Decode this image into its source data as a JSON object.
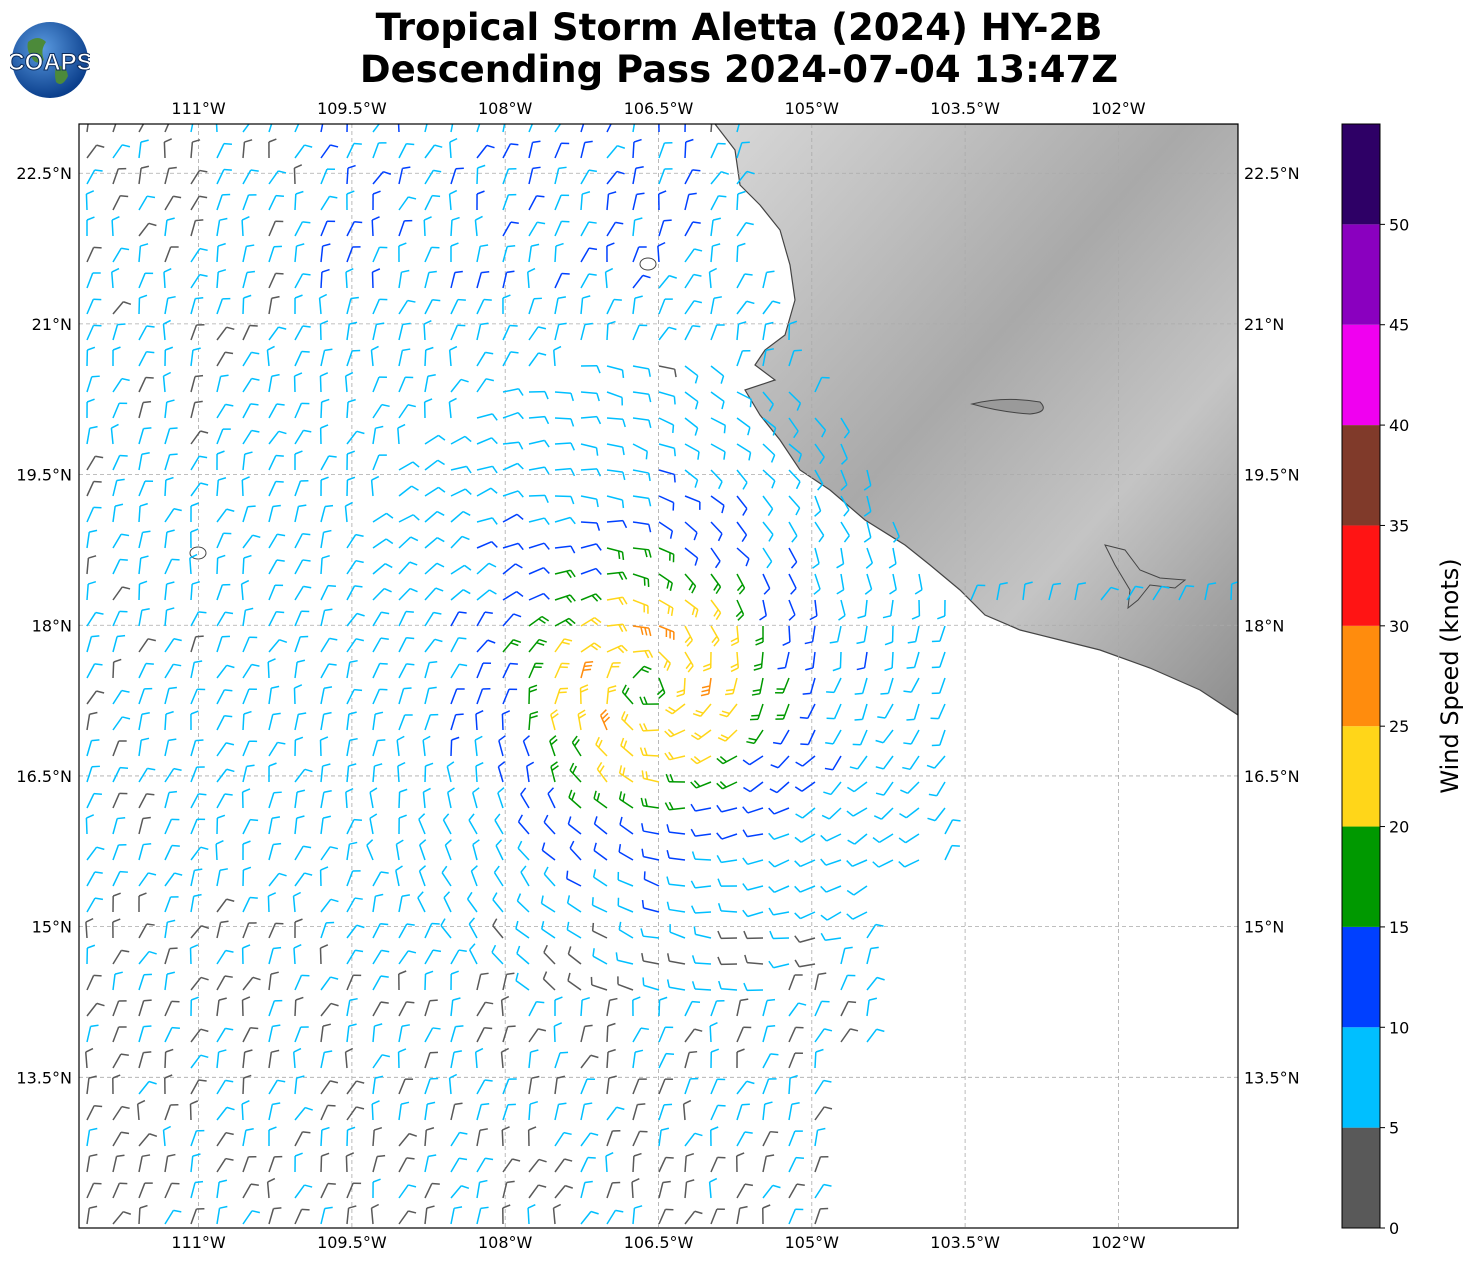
{
  "title_line1": "Tropical Storm Aletta (2024) HY-2B",
  "title_line2": "Descending Pass 2024-07-04 13:47Z",
  "logo_text": "COAPS",
  "lon_ticks": [
    "111°W",
    "109.5°W",
    "108°W",
    "106.5°W",
    "105°W",
    "103.5°W",
    "102°W"
  ],
  "lat_ticks": [
    "22.5°N",
    "21°N",
    "19.5°N",
    "18°N",
    "16.5°N",
    "15°N",
    "13.5°N"
  ],
  "colorbar": {
    "label": "Wind Speed (knots)",
    "ticks": [
      "0",
      "5",
      "10",
      "15",
      "20",
      "25",
      "30",
      "35",
      "40",
      "45",
      "50"
    ],
    "bins": [
      {
        "min": 0,
        "max": 5,
        "color": "#595959"
      },
      {
        "min": 5,
        "max": 10,
        "color": "#00bfff"
      },
      {
        "min": 10,
        "max": 15,
        "color": "#0040ff"
      },
      {
        "min": 15,
        "max": 20,
        "color": "#009900"
      },
      {
        "min": 20,
        "max": 25,
        "color": "#ffd619"
      },
      {
        "min": 25,
        "max": 30,
        "color": "#ff8c0d"
      },
      {
        "min": 30,
        "max": 35,
        "color": "#ff1414"
      },
      {
        "min": 35,
        "max": 40,
        "color": "#803a2a"
      },
      {
        "min": 40,
        "max": 45,
        "color": "#f000f0"
      },
      {
        "min": 45,
        "max": 50,
        "color": "#8a00bf"
      },
      {
        "min": 50,
        "max": 55,
        "color": "#2e0066"
      }
    ]
  },
  "map": {
    "lon_range": [
      -112.17,
      -100.83
    ],
    "lat_range": [
      12.0,
      22.99
    ],
    "storm_center": {
      "lon": -106.6,
      "lat": 17.4
    },
    "land_color": "#b5b5b5",
    "coast_color": "#444444"
  }
}
